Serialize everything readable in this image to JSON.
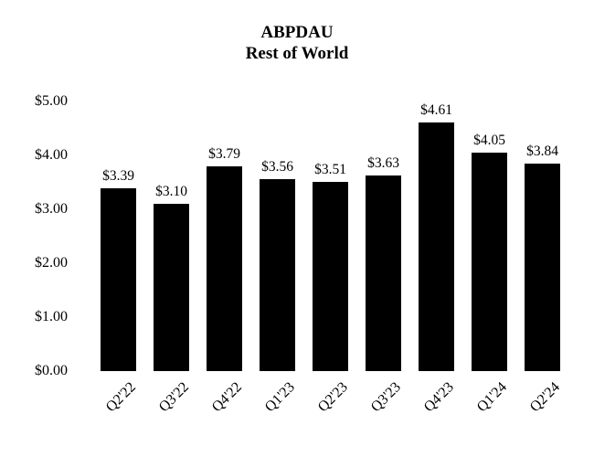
{
  "chart_data": {
    "type": "bar",
    "title": "ABPDAU",
    "subtitle": "Rest of World",
    "categories": [
      "Q2'22",
      "Q3'22",
      "Q4'22",
      "Q1'23",
      "Q2'23",
      "Q3'23",
      "Q4'23",
      "Q1'24",
      "Q2'24"
    ],
    "values": [
      3.39,
      3.1,
      3.79,
      3.56,
      3.51,
      3.63,
      4.61,
      4.05,
      3.84
    ],
    "value_labels": [
      "$3.39",
      "$3.10",
      "$3.79",
      "$3.56",
      "$3.51",
      "$3.63",
      "$4.61",
      "$4.05",
      "$3.84"
    ],
    "y_ticks": [
      "$0.00",
      "$1.00",
      "$2.00",
      "$3.00",
      "$4.00",
      "$5.00"
    ],
    "y_tick_values": [
      0,
      1,
      2,
      3,
      4,
      5
    ],
    "ylim": [
      0,
      5
    ],
    "xlabel": "",
    "ylabel": "",
    "bar_color": "#000000",
    "text_color": "#000000",
    "background_color": "#ffffff",
    "grid": false,
    "legend": null
  }
}
